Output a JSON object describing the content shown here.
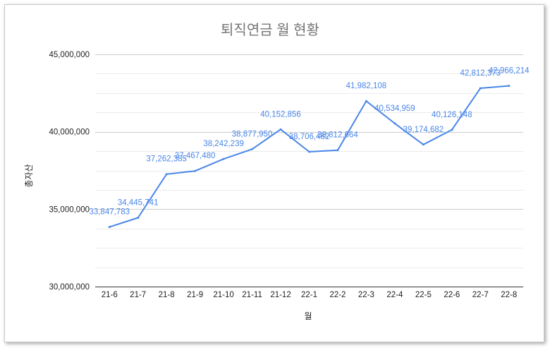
{
  "chart_data": {
    "type": "line",
    "title": "퇴직연금 월 현황",
    "xlabel": "월",
    "ylabel": "총자산",
    "categories": [
      "21-6",
      "21-7",
      "21-8",
      "21-9",
      "21-10",
      "21-11",
      "21-12",
      "22-1",
      "22-2",
      "22-3",
      "22-4",
      "22-5",
      "22-6",
      "22-7",
      "22-8"
    ],
    "series": [
      {
        "values": [
          33847783,
          34445741,
          37262385,
          37467480,
          38242239,
          38877950,
          40152856,
          38706482,
          38812664,
          41982108,
          40534959,
          39174682,
          40126148,
          42812373,
          42966214
        ],
        "data_labels": [
          "33,847,783",
          "34,445,741",
          "37,262,385",
          "37,467,480",
          "38,242,239",
          "38,877,950",
          "40,152,856",
          "38,706,482",
          "38,812,664",
          "41,982,108",
          "40,534,959",
          "39,174,682",
          "40,126,148",
          "42,812,373",
          "42,966,214"
        ]
      }
    ],
    "ylim": [
      30000000,
      45000000
    ],
    "y_ticks": [
      "30,000,000",
      "35,000,000",
      "40,000,000",
      "45,000,000"
    ],
    "grid": true,
    "line_color": "#4a86e8"
  }
}
